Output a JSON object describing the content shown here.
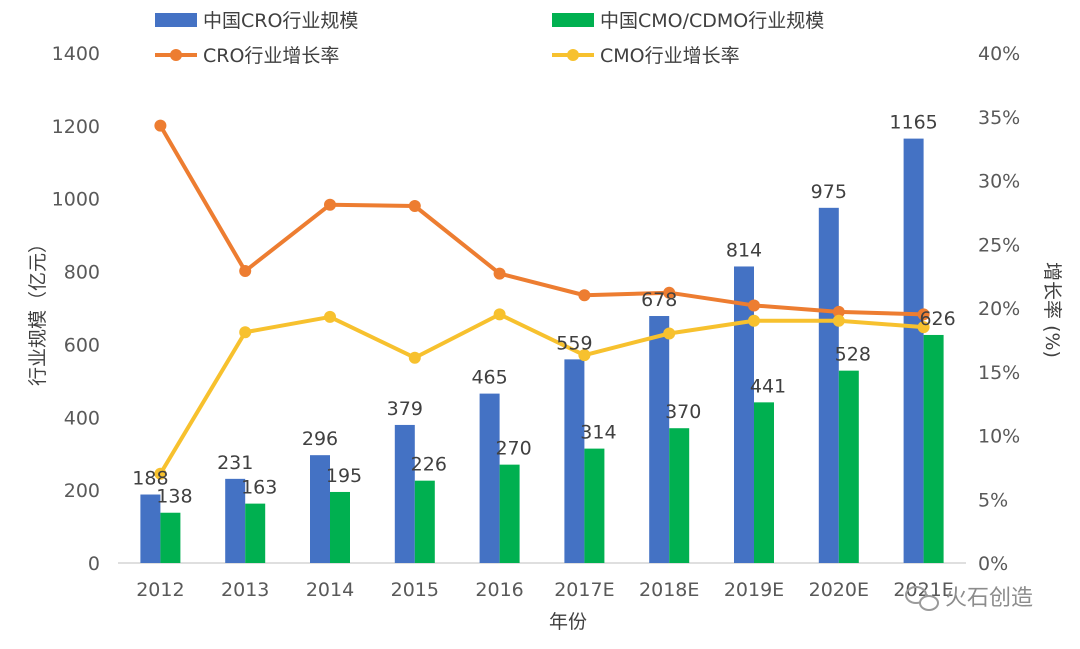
{
  "chart_data": {
    "type": "bar",
    "categories": [
      "2012",
      "2013",
      "2014",
      "2015",
      "2016",
      "2017E",
      "2018E",
      "2019E",
      "2020E",
      "2021E"
    ],
    "xlabel": "年份",
    "ylabel": "行业规模（亿元）",
    "y2label": "增长率 (%)",
    "ylim": [
      0,
      1400
    ],
    "y2lim": [
      0,
      40
    ],
    "yticks": [
      0,
      200,
      400,
      600,
      800,
      1000,
      1200,
      1400
    ],
    "y2ticks": [
      "0%",
      "5%",
      "10%",
      "15%",
      "20%",
      "25%",
      "30%",
      "35%",
      "40%"
    ],
    "grid": false,
    "legend_position": "top",
    "bar_series": [
      {
        "name": "中国CRO行业规模",
        "color": "#4472c4",
        "values": [
          188,
          231,
          296,
          379,
          465,
          559,
          678,
          814,
          975,
          1165
        ]
      },
      {
        "name": "中国CMO/CDMO行业规模",
        "color": "#00b050",
        "values": [
          138,
          163,
          195,
          226,
          270,
          314,
          370,
          441,
          528,
          626
        ]
      }
    ],
    "line_series": [
      {
        "name": "CRO行业增长率",
        "color": "#ed7d31",
        "axis": "right",
        "values": [
          34.3,
          22.9,
          28.1,
          28.0,
          22.7,
          21.0,
          21.2,
          20.2,
          19.7,
          19.5
        ]
      },
      {
        "name": "CMO行业增长率",
        "color": "#f7c12e",
        "axis": "right",
        "values": [
          7.0,
          18.1,
          19.3,
          16.1,
          19.5,
          16.3,
          18.0,
          19.0,
          19.0,
          18.5
        ]
      }
    ]
  },
  "watermark": "火石创造"
}
